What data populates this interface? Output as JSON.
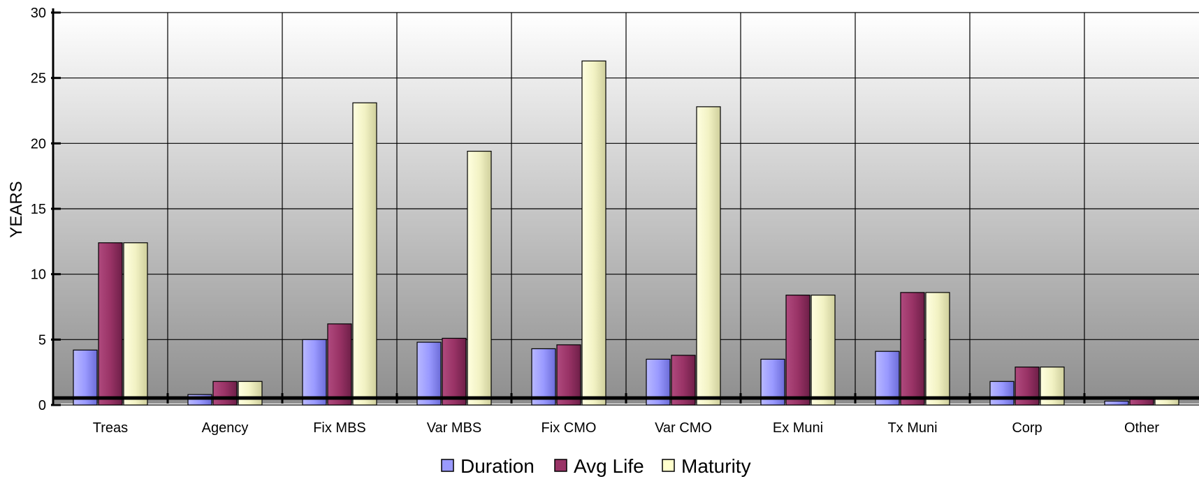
{
  "chart_data": {
    "type": "bar",
    "ylabel": "YEARS",
    "ylim": [
      0,
      30
    ],
    "yticks": [
      0,
      5,
      10,
      15,
      20,
      25,
      30
    ],
    "grid": true,
    "legend": "bottom",
    "categories": [
      "Treas",
      "Agency",
      "Fix MBS",
      "Var MBS",
      "Fix CMO",
      "Var CMO",
      "Ex Muni",
      "Tx Muni",
      "Corp",
      "Other"
    ],
    "series": [
      {
        "name": "Duration",
        "color": "#9a9aff",
        "values": [
          4.2,
          0.8,
          5.0,
          4.8,
          4.3,
          3.5,
          3.5,
          4.1,
          1.8,
          0.3
        ]
      },
      {
        "name": "Avg Life",
        "color": "#993366",
        "values": [
          12.4,
          1.8,
          6.2,
          5.1,
          4.6,
          3.8,
          8.4,
          8.6,
          2.9,
          0.5
        ]
      },
      {
        "name": "Maturity",
        "color": "#ffffcc",
        "values": [
          12.4,
          1.8,
          23.1,
          19.4,
          26.3,
          22.8,
          8.4,
          8.6,
          2.9,
          0.5
        ]
      }
    ]
  }
}
